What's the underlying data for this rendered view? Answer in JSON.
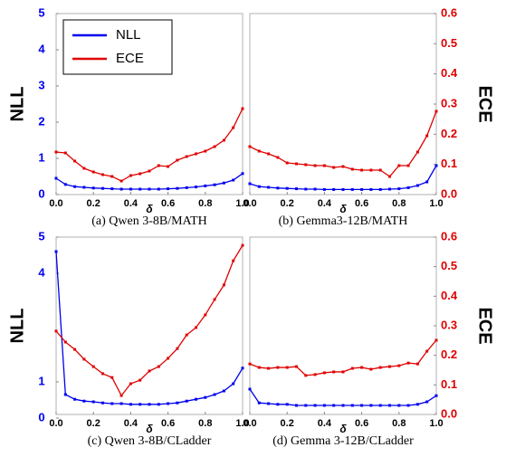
{
  "chart_data": [
    {
      "type": "line",
      "title": "(a) Qwen 3-8B/MATH",
      "xlabel": "δ",
      "ylabel": "NLL",
      "legend": "upper left",
      "x": [
        0,
        0.05,
        0.1,
        0.15,
        0.2,
        0.25,
        0.3,
        0.35,
        0.4,
        0.45,
        0.5,
        0.55,
        0.6,
        0.65,
        0.7,
        0.75,
        0.8,
        0.85,
        0.9,
        0.95,
        1.0
      ],
      "xlim": [
        0,
        1
      ],
      "xticks": [
        {
          "value": 0,
          "label": "0.0"
        },
        0.2,
        0.4,
        0.6,
        0.8,
        {
          "value": 1,
          "label": "1.0"
        }
      ],
      "ylim": [
        0,
        5
      ],
      "yticks": [
        0,
        1,
        2,
        3,
        4,
        5
      ],
      "y2lim": [
        0,
        0.6
      ],
      "series": [
        {
          "name": "NLL",
          "color": "#0000ee",
          "values": [
            0.45,
            0.28,
            0.22,
            0.2,
            0.18,
            0.17,
            0.16,
            0.15,
            0.15,
            0.15,
            0.15,
            0.15,
            0.16,
            0.17,
            0.19,
            0.21,
            0.24,
            0.27,
            0.32,
            0.4,
            0.58
          ]
        },
        {
          "name": "ECE",
          "color": "#e00000",
          "axis": "y2",
          "values": [
            0.141,
            0.138,
            0.111,
            0.087,
            0.075,
            0.066,
            0.06,
            0.045,
            0.063,
            0.069,
            0.078,
            0.096,
            0.093,
            0.114,
            0.126,
            0.135,
            0.144,
            0.159,
            0.18,
            0.222,
            0.285
          ]
        }
      ]
    },
    {
      "type": "line",
      "title": "(b) Gemma3-12B/MATH",
      "xlabel": "δ",
      "y2label": "ECE",
      "x": [
        0,
        0.05,
        0.1,
        0.15,
        0.2,
        0.25,
        0.3,
        0.35,
        0.4,
        0.45,
        0.5,
        0.55,
        0.6,
        0.65,
        0.7,
        0.75,
        0.8,
        0.85,
        0.9,
        0.95,
        1.0
      ],
      "xlim": [
        0,
        1
      ],
      "xticks": [
        {
          "value": 0,
          "label": "0.0"
        },
        0.2,
        0.4,
        0.6,
        0.8,
        {
          "value": 1,
          "label": "1.0"
        }
      ],
      "ylim": [
        0,
        5
      ],
      "y2lim": [
        0,
        0.6
      ],
      "y2ticks": [
        {
          "value": 0,
          "label": "0.0"
        },
        0.1,
        0.2,
        0.3,
        0.4,
        0.5,
        0.6
      ],
      "series": [
        {
          "name": "NLL",
          "color": "#0000ee",
          "values": [
            0.3,
            0.22,
            0.2,
            0.18,
            0.17,
            0.16,
            0.15,
            0.15,
            0.14,
            0.14,
            0.14,
            0.14,
            0.14,
            0.14,
            0.14,
            0.15,
            0.16,
            0.19,
            0.25,
            0.35,
            0.8
          ]
        },
        {
          "name": "ECE",
          "color": "#e00000",
          "axis": "y2",
          "values": [
            0.159,
            0.144,
            0.135,
            0.123,
            0.105,
            0.102,
            0.099,
            0.096,
            0.096,
            0.09,
            0.093,
            0.084,
            0.081,
            0.081,
            0.081,
            0.06,
            0.096,
            0.096,
            0.141,
            0.195,
            0.276
          ]
        }
      ]
    },
    {
      "type": "line",
      "title": "(c) Qwen 3-8B/CLadder",
      "xlabel": "δ",
      "ylabel": "NLL",
      "x": [
        0,
        0.05,
        0.1,
        0.15,
        0.2,
        0.25,
        0.3,
        0.35,
        0.4,
        0.45,
        0.5,
        0.55,
        0.6,
        0.65,
        0.7,
        0.75,
        0.8,
        0.85,
        0.9,
        0.95,
        1.0
      ],
      "xlim": [
        0,
        1
      ],
      "xticks": [
        {
          "value": 0,
          "label": "0.0"
        },
        0.2,
        0.4,
        0.6,
        0.8,
        {
          "value": 1,
          "label": "1.0"
        }
      ],
      "ylim": [
        0.1,
        5
      ],
      "yticks": [
        0,
        1,
        4,
        5
      ],
      "y2lim": [
        0,
        0.6
      ],
      "series": [
        {
          "name": "NLL",
          "color": "#0000ee",
          "values": [
            4.6,
            0.65,
            0.52,
            0.47,
            0.45,
            0.42,
            0.4,
            0.4,
            0.38,
            0.38,
            0.38,
            0.38,
            0.4,
            0.42,
            0.47,
            0.52,
            0.57,
            0.65,
            0.75,
            0.95,
            1.38
          ]
        },
        {
          "name": "ECE",
          "color": "#e00000",
          "axis": "y2",
          "values": [
            0.282,
            0.245,
            0.22,
            0.187,
            0.162,
            0.138,
            0.125,
            0.064,
            0.104,
            0.116,
            0.147,
            0.162,
            0.19,
            0.223,
            0.269,
            0.294,
            0.337,
            0.389,
            0.438,
            0.52,
            0.572
          ]
        }
      ]
    },
    {
      "type": "line",
      "title": "(d) Gemma 3-12B/CLadder",
      "xlabel": "δ",
      "y2label": "ECE",
      "x": [
        0,
        0.05,
        0.1,
        0.15,
        0.2,
        0.25,
        0.3,
        0.35,
        0.4,
        0.45,
        0.5,
        0.55,
        0.6,
        0.65,
        0.7,
        0.75,
        0.8,
        0.85,
        0.9,
        0.95,
        1.0
      ],
      "xlim": [
        0,
        1
      ],
      "xticks": [
        {
          "value": 0,
          "label": "0.0"
        },
        0.2,
        0.4,
        0.6,
        0.8,
        {
          "value": 1,
          "label": "1.0"
        }
      ],
      "ylim": [
        0.1,
        5
      ],
      "y2lim": [
        0,
        0.6
      ],
      "y2ticks": [
        {
          "value": 0,
          "label": "0.0"
        },
        0.1,
        0.2,
        0.3,
        0.4,
        0.5,
        0.6
      ],
      "series": [
        {
          "name": "NLL",
          "color": "#0000ee",
          "values": [
            0.8,
            0.42,
            0.4,
            0.38,
            0.38,
            0.35,
            0.35,
            0.35,
            0.35,
            0.35,
            0.35,
            0.35,
            0.35,
            0.35,
            0.35,
            0.35,
            0.35,
            0.35,
            0.38,
            0.45,
            0.62
          ]
        },
        {
          "name": "ECE",
          "color": "#e00000",
          "axis": "y2",
          "values": [
            0.171,
            0.159,
            0.156,
            0.159,
            0.159,
            0.162,
            0.132,
            0.135,
            0.141,
            0.144,
            0.144,
            0.156,
            0.159,
            0.153,
            0.159,
            0.162,
            0.165,
            0.174,
            0.171,
            0.214,
            0.251
          ]
        }
      ]
    }
  ]
}
